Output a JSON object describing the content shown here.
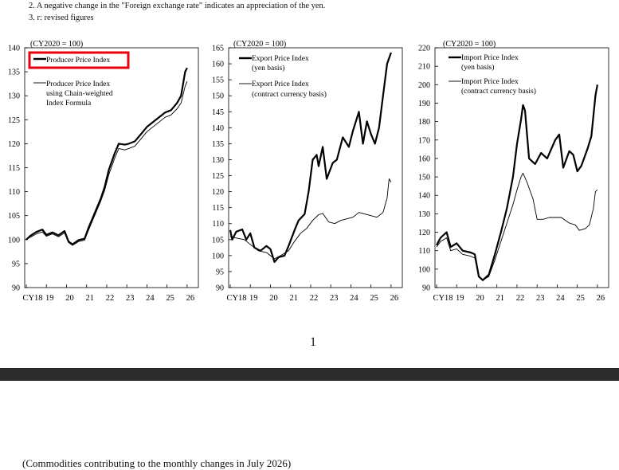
{
  "notes": [
    "2. A negative change in the \"Foreign exchange rate\" indicates an appreciation of the yen.",
    "3. r: revised figures"
  ],
  "page_number": "1",
  "next_section_heading": "(Commodities contributing to the monthly changes in July 2026)",
  "highlight_color": "#e8000b",
  "chart_data": [
    {
      "type": "line",
      "unit_label": "(CY2020 = 100)",
      "x_ticks": [
        "CY18",
        "19",
        "20",
        "21",
        "22",
        "23",
        "24",
        "25",
        "26"
      ],
      "ylim": [
        90,
        140
      ],
      "y_ticks": [
        90,
        95,
        100,
        105,
        110,
        115,
        120,
        125,
        130,
        135,
        140
      ],
      "legend_placement": "top-left",
      "highlighted_legend_entry": 0,
      "series": [
        {
          "name": "Producer Price Index",
          "style": "thick",
          "points": [
            [
              2018,
              100
            ],
            [
              2018.2,
              100.8
            ],
            [
              2018.5,
              101.6
            ],
            [
              2018.8,
              102.1
            ],
            [
              2019,
              101
            ],
            [
              2019.3,
              101.5
            ],
            [
              2019.6,
              100.9
            ],
            [
              2019.9,
              101.8
            ],
            [
              2020.1,
              99.6
            ],
            [
              2020.3,
              99
            ],
            [
              2020.6,
              99.9
            ],
            [
              2020.9,
              100.2
            ],
            [
              2021.1,
              102.5
            ],
            [
              2021.4,
              105.5
            ],
            [
              2021.7,
              108.5
            ],
            [
              2021.9,
              111
            ],
            [
              2022.1,
              114.5
            ],
            [
              2022.4,
              118
            ],
            [
              2022.6,
              120
            ],
            [
              2022.9,
              119.8
            ],
            [
              2023.1,
              120
            ],
            [
              2023.4,
              120.5
            ],
            [
              2023.7,
              122
            ],
            [
              2024,
              123.5
            ],
            [
              2024.3,
              124.5
            ],
            [
              2024.6,
              125.5
            ],
            [
              2024.9,
              126.5
            ],
            [
              2025.2,
              127
            ],
            [
              2025.5,
              128.5
            ],
            [
              2025.7,
              130
            ],
            [
              2025.9,
              135
            ],
            [
              2026,
              135.8
            ]
          ]
        },
        {
          "name": "Producer Price Index using Chain-weighted Index Formula",
          "style": "thin",
          "points": [
            [
              2018,
              100
            ],
            [
              2018.2,
              100.5
            ],
            [
              2018.5,
              101.2
            ],
            [
              2018.8,
              101.6
            ],
            [
              2019,
              100.7
            ],
            [
              2019.3,
              101.2
            ],
            [
              2019.6,
              100.6
            ],
            [
              2019.9,
              101.4
            ],
            [
              2020.1,
              99.4
            ],
            [
              2020.3,
              98.8
            ],
            [
              2020.6,
              99.6
            ],
            [
              2020.9,
              99.9
            ],
            [
              2021.1,
              102
            ],
            [
              2021.4,
              105
            ],
            [
              2021.7,
              108
            ],
            [
              2021.9,
              110.3
            ],
            [
              2022.1,
              113.5
            ],
            [
              2022.4,
              117
            ],
            [
              2022.6,
              119
            ],
            [
              2022.9,
              118.7
            ],
            [
              2023.1,
              119
            ],
            [
              2023.4,
              119.5
            ],
            [
              2023.7,
              121
            ],
            [
              2024,
              122.5
            ],
            [
              2024.3,
              123.5
            ],
            [
              2024.6,
              124.5
            ],
            [
              2024.9,
              125.5
            ],
            [
              2025.2,
              126
            ],
            [
              2025.5,
              127.3
            ],
            [
              2025.7,
              128.5
            ],
            [
              2025.9,
              132
            ],
            [
              2026,
              133
            ]
          ]
        }
      ]
    },
    {
      "type": "line",
      "unit_label": "(CY2020 = 100)",
      "x_ticks": [
        "CY18",
        "19",
        "20",
        "21",
        "22",
        "23",
        "24",
        "25",
        "26"
      ],
      "ylim": [
        90,
        165
      ],
      "y_ticks": [
        90,
        95,
        100,
        105,
        110,
        115,
        120,
        125,
        130,
        135,
        140,
        145,
        150,
        155,
        160,
        165
      ],
      "legend_placement": "top-left",
      "series": [
        {
          "name": "Export Price Index (yen basis)",
          "style": "thick",
          "points": [
            [
              2018,
              108
            ],
            [
              2018.1,
              105
            ],
            [
              2018.3,
              107.5
            ],
            [
              2018.6,
              108.2
            ],
            [
              2018.8,
              105
            ],
            [
              2019,
              107
            ],
            [
              2019.2,
              102.5
            ],
            [
              2019.5,
              101.5
            ],
            [
              2019.8,
              103
            ],
            [
              2020,
              102
            ],
            [
              2020.2,
              98
            ],
            [
              2020.4,
              99.5
            ],
            [
              2020.7,
              100
            ],
            [
              2020.9,
              103
            ],
            [
              2021.2,
              108
            ],
            [
              2021.4,
              111
            ],
            [
              2021.7,
              113
            ],
            [
              2021.9,
              120
            ],
            [
              2022.1,
              130
            ],
            [
              2022.3,
              131.5
            ],
            [
              2022.4,
              128
            ],
            [
              2022.6,
              134
            ],
            [
              2022.8,
              124
            ],
            [
              2023.1,
              129
            ],
            [
              2023.3,
              130
            ],
            [
              2023.6,
              137
            ],
            [
              2023.9,
              134
            ],
            [
              2024.1,
              139
            ],
            [
              2024.4,
              145
            ],
            [
              2024.6,
              135
            ],
            [
              2024.8,
              142
            ],
            [
              2025,
              138
            ],
            [
              2025.2,
              135
            ],
            [
              2025.4,
              140
            ],
            [
              2025.6,
              150
            ],
            [
              2025.8,
              160
            ],
            [
              2026,
              163.5
            ]
          ]
        },
        {
          "name": "Export Price Index (contract currency basis)",
          "style": "thin",
          "points": [
            [
              2018,
              106
            ],
            [
              2018.3,
              105.5
            ],
            [
              2018.7,
              105
            ],
            [
              2019,
              103.5
            ],
            [
              2019.4,
              101.5
            ],
            [
              2019.8,
              101
            ],
            [
              2020.2,
              99
            ],
            [
              2020.5,
              100
            ],
            [
              2020.9,
              101.5
            ],
            [
              2021.2,
              104.5
            ],
            [
              2021.5,
              107
            ],
            [
              2021.8,
              108.5
            ],
            [
              2022.1,
              111
            ],
            [
              2022.4,
              112.8
            ],
            [
              2022.6,
              113.2
            ],
            [
              2022.9,
              110.5
            ],
            [
              2023.2,
              110
            ],
            [
              2023.5,
              111
            ],
            [
              2023.8,
              111.5
            ],
            [
              2024.1,
              112
            ],
            [
              2024.4,
              113.5
            ],
            [
              2024.7,
              113
            ],
            [
              2025,
              112.5
            ],
            [
              2025.3,
              112
            ],
            [
              2025.6,
              113.5
            ],
            [
              2025.8,
              118
            ],
            [
              2025.9,
              124
            ],
            [
              2026,
              123
            ]
          ]
        }
      ]
    },
    {
      "type": "line",
      "unit_label": "(CY2020 = 100)",
      "x_ticks": [
        "CY18",
        "19",
        "20",
        "21",
        "22",
        "23",
        "24",
        "25",
        "26"
      ],
      "ylim": [
        90,
        220
      ],
      "y_ticks": [
        90,
        100,
        110,
        120,
        130,
        140,
        150,
        160,
        170,
        180,
        190,
        200,
        210,
        220
      ],
      "legend_placement": "top-left",
      "series": [
        {
          "name": "Import Price Index (yen basis)",
          "style": "thick",
          "points": [
            [
              2018,
              113
            ],
            [
              2018.2,
              117
            ],
            [
              2018.5,
              120
            ],
            [
              2018.7,
              112
            ],
            [
              2019,
              114
            ],
            [
              2019.3,
              110
            ],
            [
              2019.7,
              109
            ],
            [
              2019.9,
              108
            ],
            [
              2020.1,
              96
            ],
            [
              2020.3,
              94
            ],
            [
              2020.6,
              97
            ],
            [
              2020.9,
              108
            ],
            [
              2021.2,
              120
            ],
            [
              2021.5,
              133
            ],
            [
              2021.8,
              150
            ],
            [
              2022,
              168
            ],
            [
              2022.2,
              181
            ],
            [
              2022.3,
              189
            ],
            [
              2022.4,
              186
            ],
            [
              2022.6,
              160
            ],
            [
              2022.9,
              157
            ],
            [
              2023.2,
              163
            ],
            [
              2023.5,
              160
            ],
            [
              2023.9,
              170
            ],
            [
              2024.1,
              173
            ],
            [
              2024.3,
              155
            ],
            [
              2024.6,
              164
            ],
            [
              2024.8,
              162
            ],
            [
              2025,
              153
            ],
            [
              2025.2,
              156
            ],
            [
              2025.5,
              165
            ],
            [
              2025.7,
              172
            ],
            [
              2025.9,
              194
            ],
            [
              2026,
              200
            ]
          ]
        },
        {
          "name": "Import Price Index (contract currency basis)",
          "style": "thin",
          "points": [
            [
              2018,
              112
            ],
            [
              2018.2,
              115
            ],
            [
              2018.5,
              117
            ],
            [
              2018.7,
              110
            ],
            [
              2019,
              111
            ],
            [
              2019.3,
              108
            ],
            [
              2019.7,
              107
            ],
            [
              2019.9,
              106
            ],
            [
              2020.1,
              96
            ],
            [
              2020.3,
              94
            ],
            [
              2020.6,
              96
            ],
            [
              2020.9,
              105
            ],
            [
              2021.2,
              115
            ],
            [
              2021.5,
              125
            ],
            [
              2021.8,
              135
            ],
            [
              2022,
              143
            ],
            [
              2022.2,
              150
            ],
            [
              2022.3,
              152
            ],
            [
              2022.5,
              147
            ],
            [
              2022.8,
              138
            ],
            [
              2023,
              127
            ],
            [
              2023.3,
              127
            ],
            [
              2023.6,
              128
            ],
            [
              2023.9,
              128
            ],
            [
              2024.2,
              128
            ],
            [
              2024.6,
              125
            ],
            [
              2024.9,
              124
            ],
            [
              2025.1,
              121
            ],
            [
              2025.4,
              122
            ],
            [
              2025.6,
              124
            ],
            [
              2025.8,
              133
            ],
            [
              2025.9,
              142
            ],
            [
              2026,
              143
            ]
          ]
        }
      ]
    }
  ]
}
